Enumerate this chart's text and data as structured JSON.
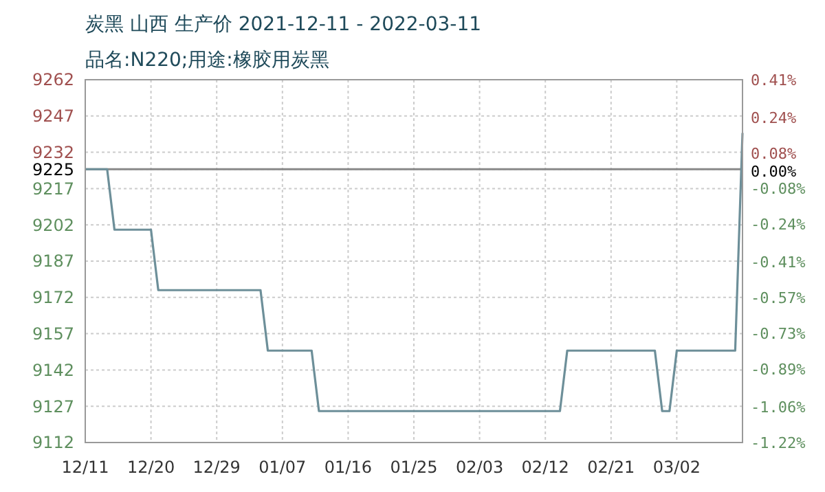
{
  "chart_data": {
    "type": "line",
    "title": "炭黑 山西 生产价 2021-12-11 - 2022-03-11",
    "subtitle": "品名:N220;用途:橡胶用炭黑",
    "series": [
      {
        "color": "#6d8f99",
        "x": [
          "2021-12-11",
          "2021-12-14",
          "2021-12-15",
          "2021-12-20",
          "2021-12-21",
          "2022-01-04",
          "2022-01-05",
          "2022-01-11",
          "2022-01-12",
          "2022-02-14",
          "2022-02-15",
          "2022-02-27",
          "2022-02-28",
          "2022-03-01",
          "2022-03-02",
          "2022-03-10",
          "2022-03-11"
        ],
        "values": [
          9225,
          9225,
          9200,
          9200,
          9175,
          9175,
          9150,
          9150,
          9125,
          9125,
          9150,
          9150,
          9125,
          9125,
          9150,
          9150,
          9240
        ]
      }
    ],
    "xlim": [
      "2021-12-11",
      "2022-03-11"
    ],
    "xticks": [
      {
        "value": "2021-12-11",
        "label": "12/11"
      },
      {
        "value": "2021-12-20",
        "label": "12/20"
      },
      {
        "value": "2021-12-29",
        "label": "12/29"
      },
      {
        "value": "2022-01-07",
        "label": "01/07"
      },
      {
        "value": "2022-01-16",
        "label": "01/16"
      },
      {
        "value": "2022-01-25",
        "label": "01/25"
      },
      {
        "value": "2022-02-03",
        "label": "02/03"
      },
      {
        "value": "2022-02-12",
        "label": "02/12"
      },
      {
        "value": "2022-02-21",
        "label": "02/21"
      },
      {
        "value": "2022-03-02",
        "label": "03/02"
      }
    ],
    "ylim": [
      9112,
      9262
    ],
    "yticks": [
      9112,
      9127,
      9142,
      9157,
      9172,
      9187,
      9202,
      9217,
      9225,
      9232,
      9247,
      9262
    ],
    "y2lim": [
      -1.22,
      0.41
    ],
    "y2ticks": [
      {
        "value": -1.22,
        "label": "-1.22%"
      },
      {
        "value": -1.06,
        "label": "-1.06%"
      },
      {
        "value": -0.89,
        "label": "-0.89%"
      },
      {
        "value": -0.73,
        "label": "-0.73%"
      },
      {
        "value": -0.57,
        "label": "-0.57%"
      },
      {
        "value": -0.41,
        "label": "-0.41%"
      },
      {
        "value": -0.24,
        "label": "-0.24%"
      },
      {
        "value": -0.08,
        "label": "-0.08%"
      },
      {
        "value": 0,
        "label": "0.00%"
      },
      {
        "value": 0.08,
        "label": "0.08%"
      },
      {
        "value": 0.24,
        "label": "0.24%"
      },
      {
        "value": 0.41,
        "label": "0.41%"
      }
    ],
    "ref_lines": [
      {
        "axis": "y",
        "value": 9225,
        "color": "#888888"
      }
    ],
    "grid": true,
    "line_style": "solid"
  }
}
